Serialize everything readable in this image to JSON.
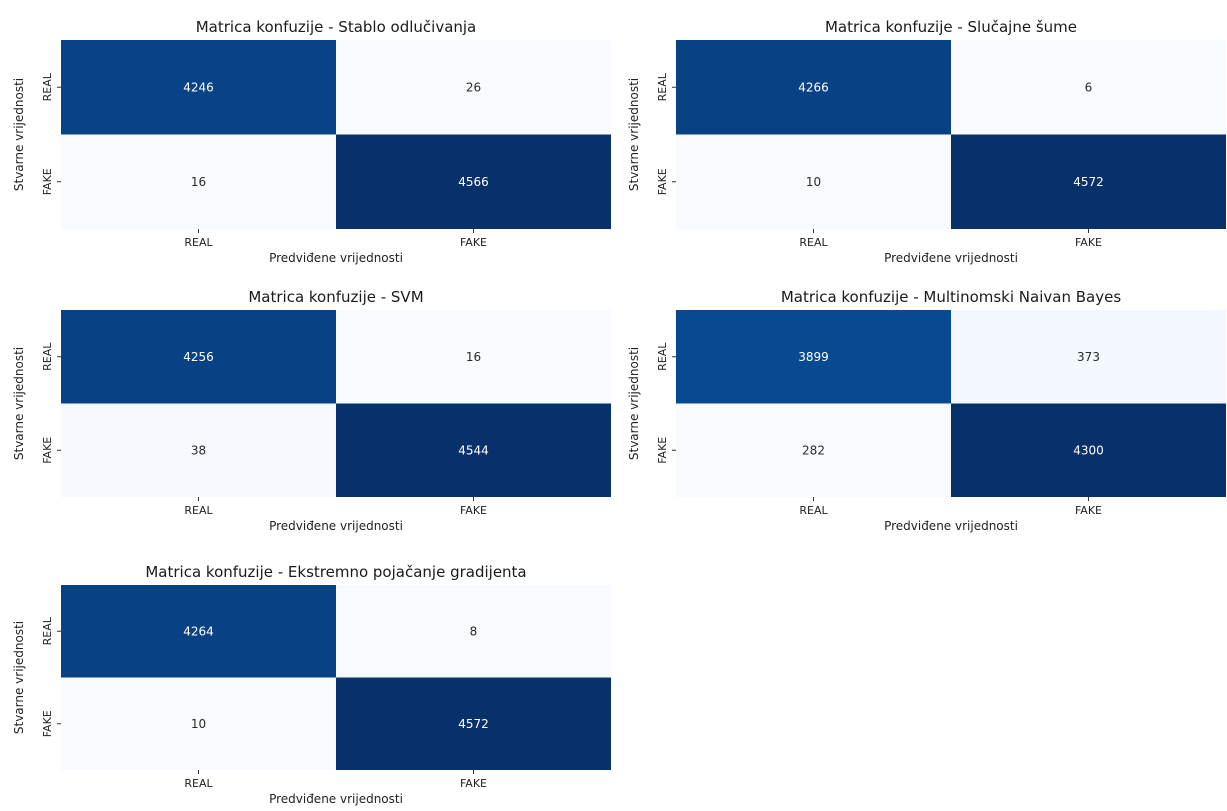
{
  "chart_data": [
    {
      "type": "heatmap",
      "title": "Matrica konfuzije - Stablo odlučivanja",
      "xlabel": "Predviđene vrijednosti",
      "ylabel": "Stvarne vrijednosti",
      "x_categories": [
        "REAL",
        "FAKE"
      ],
      "y_categories": [
        "REAL",
        "FAKE"
      ],
      "values": [
        [
          4246,
          26
        ],
        [
          16,
          4566
        ]
      ],
      "colormap": "Blues"
    },
    {
      "type": "heatmap",
      "title": "Matrica konfuzije - Slučajne šume",
      "xlabel": "Predviđene vrijednosti",
      "ylabel": "Stvarne vrijednosti",
      "x_categories": [
        "REAL",
        "FAKE"
      ],
      "y_categories": [
        "REAL",
        "FAKE"
      ],
      "values": [
        [
          4266,
          6
        ],
        [
          10,
          4572
        ]
      ],
      "colormap": "Blues"
    },
    {
      "type": "heatmap",
      "title": "Matrica konfuzije - SVM",
      "xlabel": "Predviđene vrijednosti",
      "ylabel": "Stvarne vrijednosti",
      "x_categories": [
        "REAL",
        "FAKE"
      ],
      "y_categories": [
        "REAL",
        "FAKE"
      ],
      "values": [
        [
          4256,
          16
        ],
        [
          38,
          4544
        ]
      ],
      "colormap": "Blues"
    },
    {
      "type": "heatmap",
      "title": "Matrica konfuzije - Multinomski Naivan Bayes",
      "xlabel": "Predviđene vrijednosti",
      "ylabel": "Stvarne vrijednosti",
      "x_categories": [
        "REAL",
        "FAKE"
      ],
      "y_categories": [
        "REAL",
        "FAKE"
      ],
      "values": [
        [
          3899,
          373
        ],
        [
          282,
          4300
        ]
      ],
      "colormap": "Blues"
    },
    {
      "type": "heatmap",
      "title": "Matrica konfuzije - Ekstremno pojačanje gradijenta",
      "xlabel": "Predviđene vrijednosti",
      "ylabel": "Stvarne vrijednosti",
      "x_categories": [
        "REAL",
        "FAKE"
      ],
      "y_categories": [
        "REAL",
        "FAKE"
      ],
      "values": [
        [
          4264,
          8
        ],
        [
          10,
          4572
        ]
      ],
      "colormap": "Blues"
    }
  ]
}
